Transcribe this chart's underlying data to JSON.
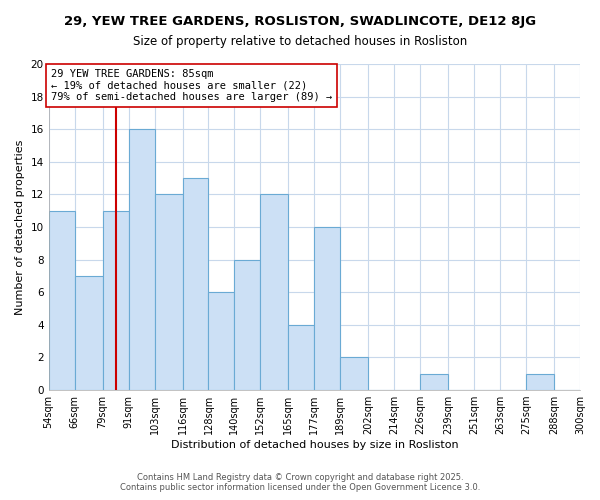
{
  "title": "29, YEW TREE GARDENS, ROSLISTON, SWADLINCOTE, DE12 8JG",
  "subtitle": "Size of property relative to detached houses in Rosliston",
  "xlabel": "Distribution of detached houses by size in Rosliston",
  "ylabel": "Number of detached properties",
  "bin_edges": [
    54,
    66,
    79,
    91,
    103,
    116,
    128,
    140,
    152,
    165,
    177,
    189,
    202,
    214,
    226,
    239,
    251,
    263,
    275,
    288,
    300
  ],
  "bar_heights": [
    11,
    7,
    11,
    16,
    12,
    13,
    6,
    8,
    12,
    4,
    10,
    2,
    0,
    0,
    1,
    0,
    0,
    0,
    1,
    0
  ],
  "bar_color": "#cce0f5",
  "bar_edge_color": "#6aaad4",
  "property_size": 85,
  "vline_color": "#cc0000",
  "annotation_line1": "29 YEW TREE GARDENS: 85sqm",
  "annotation_line2": "← 19% of detached houses are smaller (22)",
  "annotation_line3": "79% of semi-detached houses are larger (89) →",
  "annotation_box_edge": "#cc0000",
  "ylim": [
    0,
    20
  ],
  "yticks": [
    0,
    2,
    4,
    6,
    8,
    10,
    12,
    14,
    16,
    18,
    20
  ],
  "tick_labels": [
    "54sqm",
    "66sqm",
    "79sqm",
    "91sqm",
    "103sqm",
    "116sqm",
    "128sqm",
    "140sqm",
    "152sqm",
    "165sqm",
    "177sqm",
    "189sqm",
    "202sqm",
    "214sqm",
    "226sqm",
    "239sqm",
    "251sqm",
    "263sqm",
    "275sqm",
    "288sqm",
    "300sqm"
  ],
  "footer_line1": "Contains HM Land Registry data © Crown copyright and database right 2025.",
  "footer_line2": "Contains public sector information licensed under the Open Government Licence 3.0.",
  "background_color": "#ffffff",
  "grid_color": "#c8d8eb",
  "title_fontsize": 9.5,
  "subtitle_fontsize": 8.5,
  "axis_label_fontsize": 8,
  "tick_fontsize": 7,
  "annotation_fontsize": 7.5,
  "footer_fontsize": 6.0
}
